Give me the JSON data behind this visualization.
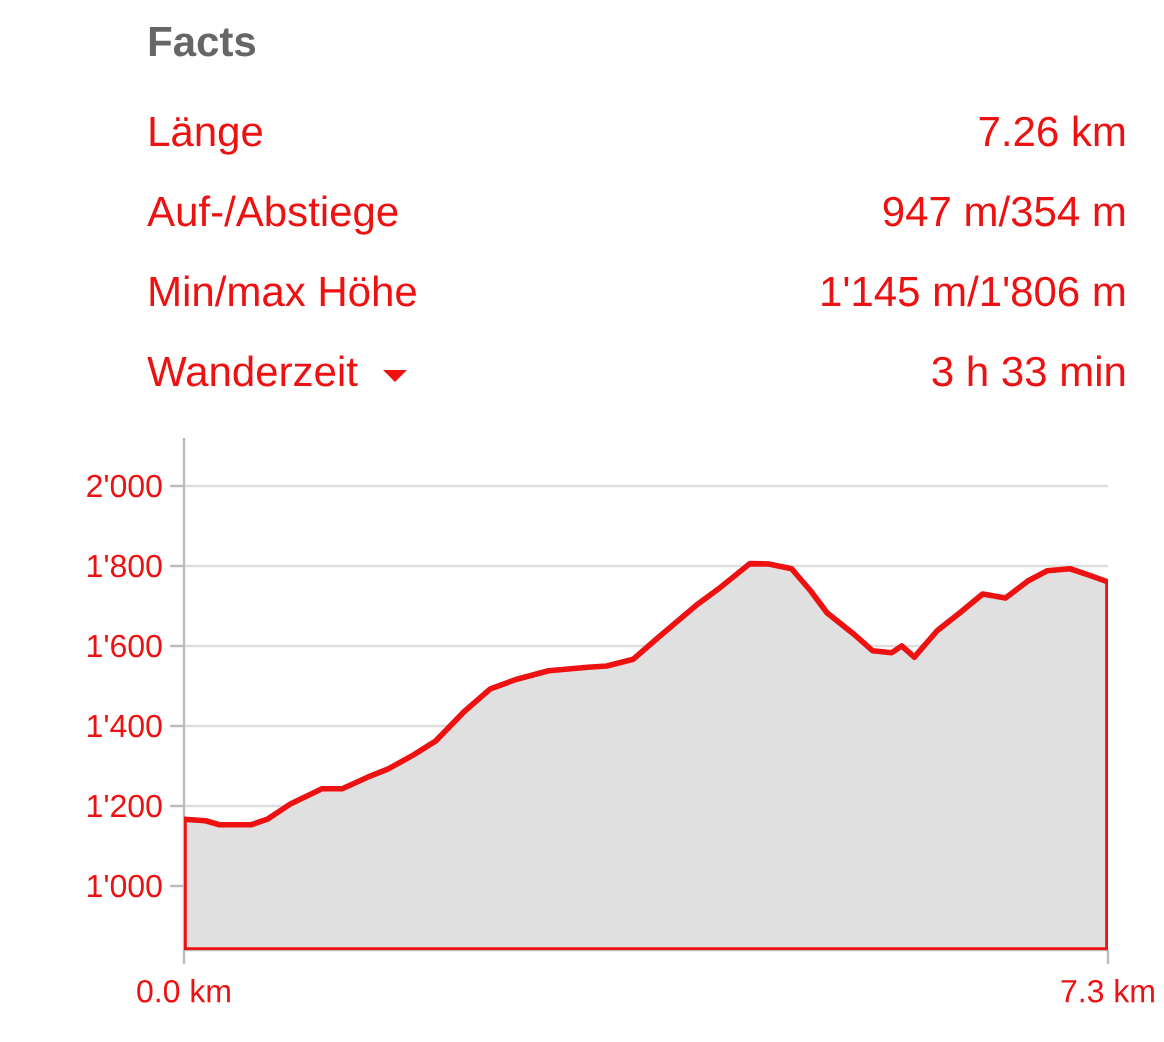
{
  "chart_data": {
    "type": "area",
    "title": "Facts",
    "annotations": [
      "Länge",
      "7.26 km",
      "Auf-/Abstiege",
      "947 m/354 m",
      "Min/max Höhe",
      "1'145 m/1'806 m",
      "Wanderzeit",
      "3 h 33 min"
    ],
    "x": [
      0,
      0.17,
      0.28,
      0.53,
      0.66,
      0.84,
      1.09,
      1.25,
      1.45,
      1.61,
      1.81,
      1.99,
      2.22,
      2.42,
      2.63,
      2.88,
      3.19,
      3.34,
      3.55,
      3.75,
      4.06,
      4.24,
      4.47,
      4.62,
      4.8,
      4.95,
      5.08,
      5.29,
      5.44,
      5.59,
      5.67,
      5.77,
      5.95,
      6.13,
      6.31,
      6.49,
      6.67,
      6.82,
      7.0,
      7.15,
      7.3
    ],
    "series": [
      {
        "color": "#e0e0e0",
        "values": [
          1167,
          1163,
          1153,
          1153,
          1167,
          1205,
          1243,
          1243,
          1272,
          1292,
          1327,
          1363,
          1438,
          1493,
          1517,
          1538,
          1547,
          1550,
          1567,
          1622,
          1705,
          1747,
          1806,
          1805,
          1793,
          1738,
          1683,
          1630,
          1588,
          1583,
          1600,
          1572,
          1638,
          1683,
          1730,
          1720,
          1763,
          1788,
          1793,
          1777,
          1760
        ]
      }
    ],
    "xlim": [
      0,
      7.3
    ],
    "ylim": [
      840,
      2120
    ],
    "xticks": [
      {
        "value": 0,
        "label": "0.0 km"
      },
      {
        "value": 7.3,
        "label": "7.3 km"
      }
    ],
    "yticks": [
      {
        "value": 1000,
        "label": "1'000"
      },
      {
        "value": 1200,
        "label": "1'200"
      },
      {
        "value": 1400,
        "label": "1'400"
      },
      {
        "value": 1600,
        "label": "1'600"
      },
      {
        "value": 1800,
        "label": "1'800"
      },
      {
        "value": 2000,
        "label": "2'000"
      }
    ],
    "grid": "y"
  }
}
